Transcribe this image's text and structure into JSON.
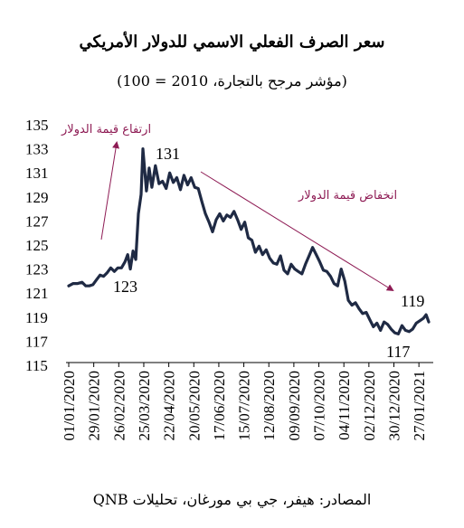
{
  "title": "سعر الصرف الفعلي الاسمي للدولار الأمريكي",
  "subtitle": "(مؤشر مرجح بالتجارة، 2010 = 100)",
  "source": "المصادر: هيفر، جي بي مورغان، تحليلات QNB",
  "chart_data": {
    "type": "line",
    "title": "سعر الصرف الفعلي الاسمي للدولار الأمريكي",
    "subtitle": "(مؤشر مرجح بالتجارة، 2010 = 100)",
    "ylim": [
      115,
      135
    ],
    "yticks": [
      115,
      117,
      119,
      121,
      123,
      125,
      127,
      129,
      131,
      133,
      135
    ],
    "xlim": [
      "2020-01-01",
      "2021-02-09"
    ],
    "xticks": [
      "01/01/2020",
      "29/01/2020",
      "26/02/2020",
      "25/03/2020",
      "22/04/2020",
      "20/05/2020",
      "17/06/2020",
      "15/07/2020",
      "12/08/2020",
      "09/09/2020",
      "07/10/2020",
      "04/11/2020",
      "02/12/2020",
      "30/12/2020",
      "27/01/2021"
    ],
    "grid": false,
    "line_color": "#1f2a44",
    "annotation_color": "#8e1b54",
    "annotations": {
      "rise_label": "ارتفاع قيمة الدولار",
      "fall_label": "انخفاض قيمة الدولار",
      "low_start": "123",
      "peak": "131",
      "end_upper": "119",
      "end_lower": "117"
    },
    "series": [
      {
        "points": [
          [
            "2020-01-01",
            121.6
          ],
          [
            "2020-01-06",
            121.8
          ],
          [
            "2020-01-11",
            121.8
          ],
          [
            "2020-01-16",
            121.9
          ],
          [
            "2020-01-20",
            121.6
          ],
          [
            "2020-01-24",
            121.6
          ],
          [
            "2020-01-28",
            121.7
          ],
          [
            "2020-02-01",
            122.1
          ],
          [
            "2020-02-05",
            122.5
          ],
          [
            "2020-02-09",
            122.4
          ],
          [
            "2020-02-13",
            122.7
          ],
          [
            "2020-02-17",
            123.1
          ],
          [
            "2020-02-21",
            122.8
          ],
          [
            "2020-02-25",
            123.1
          ],
          [
            "2020-02-29",
            123.1
          ],
          [
            "2020-03-04",
            123.6
          ],
          [
            "2020-03-07",
            124.2
          ],
          [
            "2020-03-10",
            123.0
          ],
          [
            "2020-03-13",
            124.5
          ],
          [
            "2020-03-16",
            123.8
          ],
          [
            "2020-03-19",
            127.6
          ],
          [
            "2020-03-22",
            129.2
          ],
          [
            "2020-03-24",
            133.0
          ],
          [
            "2020-03-26",
            131.2
          ],
          [
            "2020-03-28",
            129.5
          ],
          [
            "2020-03-31",
            131.4
          ],
          [
            "2020-04-03",
            129.8
          ],
          [
            "2020-04-07",
            131.6
          ],
          [
            "2020-04-11",
            130.1
          ],
          [
            "2020-04-15",
            130.3
          ],
          [
            "2020-04-19",
            129.7
          ],
          [
            "2020-04-23",
            131.0
          ],
          [
            "2020-04-27",
            130.2
          ],
          [
            "2020-05-01",
            130.6
          ],
          [
            "2020-05-05",
            129.6
          ],
          [
            "2020-05-09",
            130.8
          ],
          [
            "2020-05-13",
            130.0
          ],
          [
            "2020-05-17",
            130.6
          ],
          [
            "2020-05-21",
            129.8
          ],
          [
            "2020-05-25",
            129.7
          ],
          [
            "2020-05-29",
            128.6
          ],
          [
            "2020-06-02",
            127.6
          ],
          [
            "2020-06-06",
            126.9
          ],
          [
            "2020-06-10",
            126.1
          ],
          [
            "2020-06-14",
            127.1
          ],
          [
            "2020-06-18",
            127.6
          ],
          [
            "2020-06-22",
            127.0
          ],
          [
            "2020-06-26",
            127.5
          ],
          [
            "2020-06-30",
            127.3
          ],
          [
            "2020-07-04",
            127.8
          ],
          [
            "2020-07-08",
            127.1
          ],
          [
            "2020-07-12",
            126.3
          ],
          [
            "2020-07-16",
            126.9
          ],
          [
            "2020-07-20",
            125.6
          ],
          [
            "2020-07-24",
            125.4
          ],
          [
            "2020-07-28",
            124.4
          ],
          [
            "2020-08-01",
            124.9
          ],
          [
            "2020-08-05",
            124.2
          ],
          [
            "2020-08-09",
            124.6
          ],
          [
            "2020-08-13",
            123.9
          ],
          [
            "2020-08-17",
            123.5
          ],
          [
            "2020-08-21",
            123.4
          ],
          [
            "2020-08-25",
            124.1
          ],
          [
            "2020-08-29",
            122.9
          ],
          [
            "2020-09-02",
            122.6
          ],
          [
            "2020-09-06",
            123.4
          ],
          [
            "2020-09-10",
            123.0
          ],
          [
            "2020-09-14",
            122.8
          ],
          [
            "2020-09-18",
            122.6
          ],
          [
            "2020-09-22",
            123.4
          ],
          [
            "2020-09-26",
            124.1
          ],
          [
            "2020-09-30",
            124.8
          ],
          [
            "2020-10-04",
            124.2
          ],
          [
            "2020-10-08",
            123.6
          ],
          [
            "2020-10-12",
            122.9
          ],
          [
            "2020-10-16",
            122.8
          ],
          [
            "2020-10-20",
            122.4
          ],
          [
            "2020-10-24",
            121.8
          ],
          [
            "2020-10-28",
            121.6
          ],
          [
            "2020-11-01",
            123.0
          ],
          [
            "2020-11-05",
            122.0
          ],
          [
            "2020-11-09",
            120.4
          ],
          [
            "2020-11-13",
            120.0
          ],
          [
            "2020-11-17",
            120.2
          ],
          [
            "2020-11-21",
            119.7
          ],
          [
            "2020-11-25",
            119.3
          ],
          [
            "2020-11-29",
            119.4
          ],
          [
            "2020-12-03",
            118.8
          ],
          [
            "2020-12-07",
            118.2
          ],
          [
            "2020-12-11",
            118.5
          ],
          [
            "2020-12-15",
            117.9
          ],
          [
            "2020-12-19",
            118.6
          ],
          [
            "2020-12-23",
            118.4
          ],
          [
            "2020-12-27",
            118.0
          ],
          [
            "2020-12-31",
            117.7
          ],
          [
            "2021-01-04",
            117.6
          ],
          [
            "2021-01-08",
            118.3
          ],
          [
            "2021-01-12",
            117.9
          ],
          [
            "2021-01-16",
            117.8
          ],
          [
            "2021-01-20",
            118.0
          ],
          [
            "2021-01-24",
            118.5
          ],
          [
            "2021-01-28",
            118.7
          ],
          [
            "2021-02-01",
            118.9
          ],
          [
            "2021-02-04",
            119.2
          ],
          [
            "2021-02-07",
            118.6
          ]
        ]
      }
    ]
  }
}
